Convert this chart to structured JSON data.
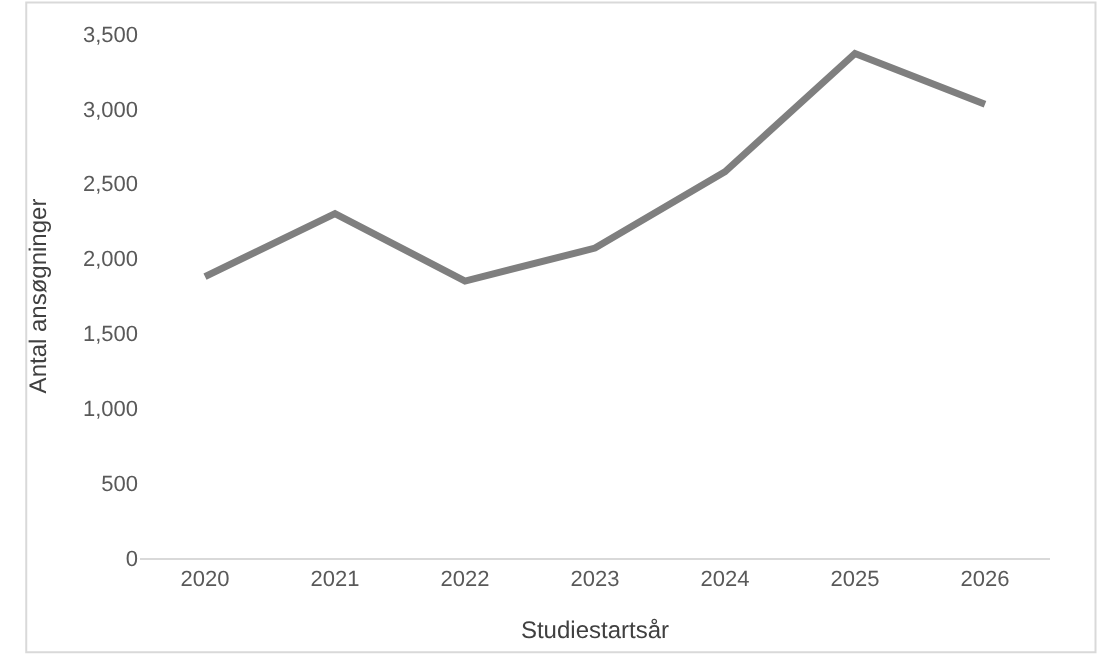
{
  "chart_data": {
    "type": "line",
    "xlabel": "Studiestartsår",
    "ylabel": "Antal ansøgninger",
    "categories": [
      "2020",
      "2021",
      "2022",
      "2023",
      "2024",
      "2025",
      "2026"
    ],
    "series": [
      {
        "color": "#7f7f7f",
        "values": [
          1880,
          2300,
          1850,
          2070,
          2580,
          3370,
          3030
        ]
      }
    ],
    "ylim": [
      0,
      3500
    ],
    "yticks": [
      {
        "value": 0,
        "label": "0"
      },
      {
        "value": 500,
        "label": "500"
      },
      {
        "value": 1000,
        "label": "1,000"
      },
      {
        "value": 1500,
        "label": "1,500"
      },
      {
        "value": 2000,
        "label": "2,000"
      },
      {
        "value": 2500,
        "label": "2,500"
      },
      {
        "value": 3000,
        "label": "3,000"
      },
      {
        "value": 3500,
        "label": "3,500"
      }
    ],
    "legend": false,
    "marker": "none",
    "line_style": "solid"
  }
}
